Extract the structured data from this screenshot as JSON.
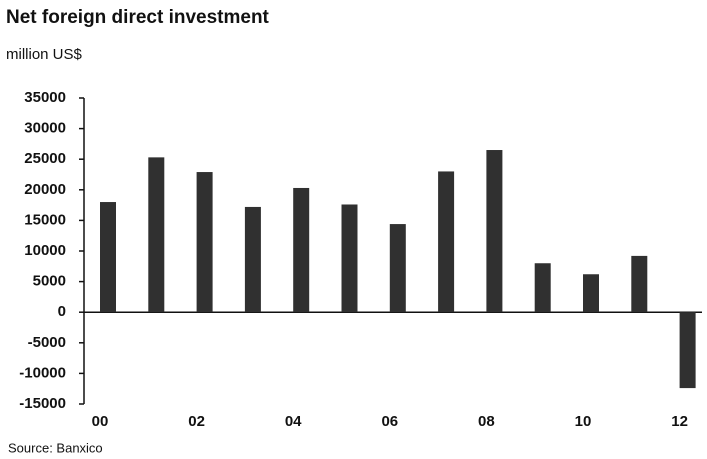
{
  "chart_data": {
    "type": "bar",
    "title": "Net foreign direct investment",
    "subtitle": "million US$",
    "source": "Source: Banxico",
    "categories": [
      "00",
      null,
      "02",
      null,
      "04",
      null,
      "06",
      null,
      "08",
      null,
      "10",
      null,
      "12"
    ],
    "values": [
      18000,
      25300,
      22900,
      17200,
      20300,
      17600,
      14400,
      23000,
      26500,
      8000,
      6200,
      9200,
      -12400
    ],
    "color": "#303030",
    "ylim": [
      -15000,
      35000
    ],
    "yticks": [
      -15000,
      -10000,
      -5000,
      0,
      5000,
      10000,
      15000,
      20000,
      25000,
      30000,
      35000
    ]
  }
}
